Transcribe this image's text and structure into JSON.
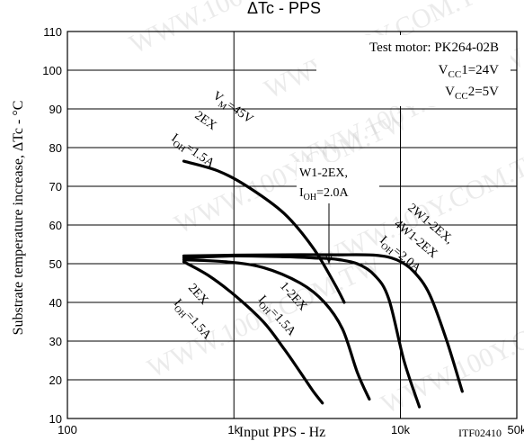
{
  "chart_data": {
    "type": "line",
    "title": "ΔTc - PPS",
    "xlabel": "Input PPS - Hz",
    "ylabel": "Substrate temperature increase, ΔTc - °C",
    "x_scale": "log",
    "xlim": [
      100,
      50000
    ],
    "ylim": [
      10,
      110
    ],
    "x_ticks": [
      {
        "value": 100,
        "label": "100"
      },
      {
        "value": 1000,
        "label": "1k"
      },
      {
        "value": 10000,
        "label": "10k"
      },
      {
        "value": 50000,
        "label": "50k"
      }
    ],
    "y_ticks": [
      10,
      20,
      30,
      40,
      50,
      60,
      70,
      80,
      90,
      100,
      110
    ],
    "grid": true,
    "test_conditions": {
      "motor": "Test motor: PK264-02B",
      "vcc1": "VCC1=24V",
      "vcc2": "VCC2=5V"
    },
    "series": [
      {
        "name": "VM=45V 2EX IOH=1.5A",
        "x": [
          500,
          800,
          1200,
          2000,
          3000,
          4000,
          4600
        ],
        "y": [
          76.5,
          74,
          70,
          63,
          54,
          45,
          40
        ]
      },
      {
        "name": "W1-2EX, IOH=2.0A",
        "x": [
          500,
          1000,
          2000,
          3000,
          4000,
          5500,
          7000,
          8500,
          10500,
          13000
        ],
        "y": [
          51.5,
          52,
          51.8,
          51.5,
          51.2,
          50,
          47,
          41,
          25,
          13
        ]
      },
      {
        "name": "2W1-2EX, 4W1-2EX IOH=2.0A",
        "x": [
          500,
          1000,
          2000,
          4000,
          7000,
          9500,
          12000,
          15000,
          19000,
          23500
        ],
        "y": [
          52,
          52.2,
          52.3,
          52.3,
          52.2,
          51,
          48,
          42,
          30,
          17
        ]
      },
      {
        "name": "1-2EX IOH=1.5A",
        "x": [
          500,
          900,
          1500,
          2500,
          3500,
          4500,
          5500,
          6500
        ],
        "y": [
          51,
          50.5,
          49,
          45,
          40,
          33,
          22,
          15
        ]
      },
      {
        "name": "2EX IOH=1.5A",
        "x": [
          500,
          700,
          1000,
          1500,
          2000,
          2500,
          3000,
          3400
        ],
        "y": [
          50.5,
          47,
          42,
          35,
          28,
          22,
          17,
          14
        ]
      }
    ],
    "annotations": {
      "vm_label": "VM=45V",
      "twoex_top": "2EX",
      "ioh15_top": "IOH=1.5A",
      "w12ex_line1": "W1-2EX,",
      "w12ex_line2": "IOH=2.0A",
      "w2_line1": "2W1-2EX,",
      "w2_line2": "4W1-2EX",
      "w2_line3": "IOH=2.0A",
      "one2ex": "1-2EX",
      "ioh15_mid": "IOH=1.5A",
      "twoex_bottom": "2EX",
      "ioh15_bottom": "IOH=1.5A",
      "code": "ITF02410"
    },
    "watermark": "WWW.100Y.COM.TW"
  }
}
